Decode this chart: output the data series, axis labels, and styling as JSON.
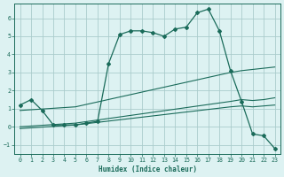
{
  "xlabel": "Humidex (Indice chaleur)",
  "bg_color": "#ddf2f2",
  "grid_color": "#aacccc",
  "line_color": "#1a6b5a",
  "marker_color": "#1a6b5a",
  "xlim": [
    -0.5,
    23.5
  ],
  "ylim": [
    -1.5,
    6.8
  ],
  "xticks": [
    0,
    1,
    2,
    3,
    4,
    5,
    6,
    7,
    8,
    9,
    10,
    11,
    12,
    13,
    14,
    15,
    16,
    17,
    18,
    19,
    20,
    21,
    22,
    23
  ],
  "yticks": [
    -1,
    0,
    1,
    2,
    3,
    4,
    5,
    6
  ],
  "series1_x": [
    0,
    1,
    2,
    3,
    4,
    5,
    6,
    7,
    8,
    9,
    10,
    11,
    12,
    13,
    14,
    15,
    16,
    17,
    18,
    19,
    20,
    21,
    22,
    23
  ],
  "series1_y": [
    1.2,
    1.5,
    0.9,
    0.1,
    0.1,
    0.1,
    0.2,
    0.3,
    3.5,
    5.1,
    5.3,
    5.3,
    5.2,
    5.0,
    5.4,
    5.5,
    6.3,
    6.5,
    5.3,
    3.1,
    1.4,
    -0.4,
    -0.5,
    -1.2
  ],
  "series2_x": [
    0,
    5,
    19,
    20,
    23
  ],
  "series2_y": [
    0.9,
    1.1,
    3.0,
    3.1,
    3.3
  ],
  "series3_x": [
    0,
    5,
    19,
    20,
    21,
    22,
    23
  ],
  "series3_y": [
    0.0,
    0.2,
    1.4,
    1.5,
    1.45,
    1.5,
    1.6
  ],
  "series4_x": [
    0,
    5,
    19,
    20,
    21,
    22,
    23
  ],
  "series4_y": [
    -0.1,
    0.1,
    1.1,
    1.15,
    1.1,
    1.15,
    1.2
  ]
}
